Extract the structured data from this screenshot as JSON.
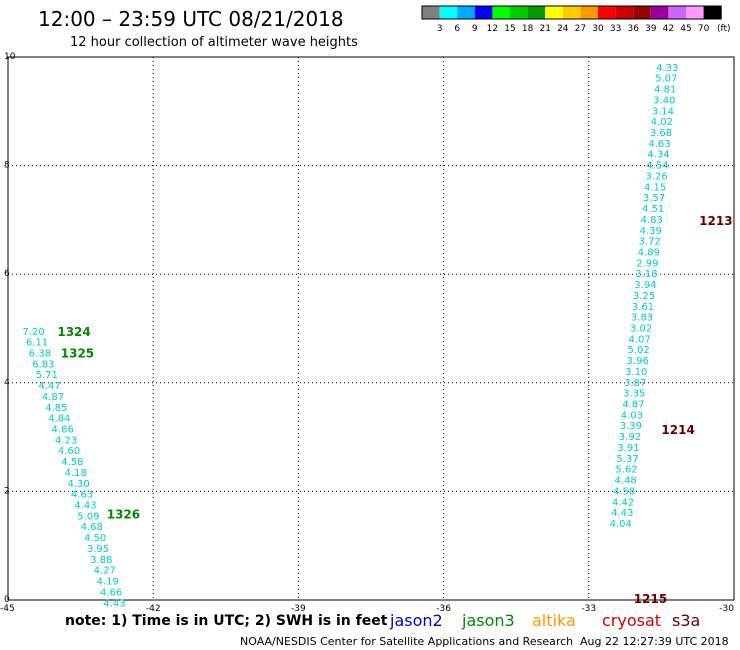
{
  "header": {
    "title": "12:00 – 23:59 UTC 08/21/2018",
    "subtitle": "12 hour collection of altimeter wave heights"
  },
  "colorbar": {
    "unit": "(ft)",
    "ticks": [
      "3",
      "6",
      "9",
      "12",
      "15",
      "18",
      "21",
      "24",
      "27",
      "30",
      "33",
      "36",
      "39",
      "42",
      "45",
      "70"
    ],
    "colors": [
      "#808080",
      "#00ffff",
      "#00aaff",
      "#0000ff",
      "#00ff00",
      "#00cc00",
      "#009900",
      "#ffff00",
      "#ffcc00",
      "#ff9900",
      "#ff0000",
      "#cc0000",
      "#990000",
      "#990099",
      "#cc66ff",
      "#ff99ff",
      "#000000"
    ]
  },
  "footer": {
    "note": "note: 1) Time is in UTC; 2) SWH is in feet",
    "legend": [
      {
        "label": "jason2",
        "color": "#0000cc"
      },
      {
        "label": "jason3",
        "color": "#008800"
      },
      {
        "label": "altika",
        "color": "#ff9900"
      },
      {
        "label": "cryosat",
        "color": "#cc0000"
      },
      {
        "label": "s3a",
        "color": "#660000"
      }
    ],
    "credit": "NOAA/NESDIS Center for Satellite Applications and Research",
    "timestamp": "Aug 22 12:27:39 UTC 2018"
  },
  "chart_data": {
    "type": "scatter",
    "xlim": [
      -45,
      -30
    ],
    "ylim": [
      0,
      10
    ],
    "x_ticks": [
      "-45",
      "-42",
      "-39",
      "-36",
      "-33",
      "-30"
    ],
    "y_ticks": [
      "0",
      "2",
      "4",
      "6",
      "8",
      "10"
    ],
    "grid": true,
    "value_color": "#00cccc",
    "tracks": [
      {
        "points": [
          {
            "x": -44.47,
            "y": 4.94,
            "v": "7.20"
          },
          {
            "x": -44.4,
            "y": 4.74,
            "v": "6.11"
          },
          {
            "x": -44.34,
            "y": 4.54,
            "v": "6.38"
          },
          {
            "x": -44.27,
            "y": 4.34,
            "v": "6.83"
          },
          {
            "x": -44.2,
            "y": 4.14,
            "v": "5.71"
          },
          {
            "x": -44.14,
            "y": 3.94,
            "v": "4.47"
          },
          {
            "x": -44.07,
            "y": 3.74,
            "v": "4.87"
          },
          {
            "x": -44.0,
            "y": 3.54,
            "v": "4.85"
          },
          {
            "x": -43.94,
            "y": 3.34,
            "v": "4.84"
          },
          {
            "x": -43.87,
            "y": 3.14,
            "v": "4.86"
          },
          {
            "x": -43.8,
            "y": 2.94,
            "v": "4.23"
          },
          {
            "x": -43.74,
            "y": 2.74,
            "v": "4.60"
          },
          {
            "x": -43.67,
            "y": 2.54,
            "v": "4.58"
          },
          {
            "x": -43.6,
            "y": 2.34,
            "v": "4.18"
          },
          {
            "x": -43.54,
            "y": 2.14,
            "v": "4.30"
          },
          {
            "x": -43.47,
            "y": 1.94,
            "v": "4.63"
          },
          {
            "x": -43.4,
            "y": 1.74,
            "v": "4.43"
          },
          {
            "x": -43.34,
            "y": 1.54,
            "v": "5.09"
          },
          {
            "x": -43.27,
            "y": 1.34,
            "v": "4.68"
          },
          {
            "x": -43.2,
            "y": 1.14,
            "v": "4.50"
          },
          {
            "x": -43.14,
            "y": 0.94,
            "v": "3.95"
          },
          {
            "x": -43.07,
            "y": 0.74,
            "v": "3.88"
          },
          {
            "x": -43.0,
            "y": 0.54,
            "v": "4.27"
          },
          {
            "x": -42.94,
            "y": 0.34,
            "v": "4.19"
          },
          {
            "x": -42.87,
            "y": 0.14,
            "v": "4.66"
          },
          {
            "x": -42.8,
            "y": -0.06,
            "v": "4.43"
          }
        ],
        "labels": [
          {
            "x": -43.98,
            "y": 4.94,
            "text": "1324",
            "color": "#008800"
          },
          {
            "x": -43.91,
            "y": 4.54,
            "text": "1325",
            "color": "#008800"
          },
          {
            "x": -42.96,
            "y": 1.57,
            "text": "1326",
            "color": "#008800"
          }
        ]
      },
      {
        "points": [
          {
            "x": -31.38,
            "y": 9.8,
            "v": "4.33"
          },
          {
            "x": -31.4,
            "y": 9.6,
            "v": "5.07"
          },
          {
            "x": -31.42,
            "y": 9.4,
            "v": "4.81"
          },
          {
            "x": -31.44,
            "y": 9.2,
            "v": "3.40"
          },
          {
            "x": -31.47,
            "y": 9.0,
            "v": "3.14"
          },
          {
            "x": -31.49,
            "y": 8.8,
            "v": "4.02"
          },
          {
            "x": -31.51,
            "y": 8.6,
            "v": "3.68"
          },
          {
            "x": -31.54,
            "y": 8.4,
            "v": "4.63"
          },
          {
            "x": -31.56,
            "y": 8.2,
            "v": "4.34"
          },
          {
            "x": -31.58,
            "y": 8.0,
            "v": "4.54"
          },
          {
            "x": -31.6,
            "y": 7.8,
            "v": "3.26"
          },
          {
            "x": -31.63,
            "y": 7.6,
            "v": "4.15"
          },
          {
            "x": -31.65,
            "y": 7.4,
            "v": "3.57"
          },
          {
            "x": -31.67,
            "y": 7.2,
            "v": "4.51"
          },
          {
            "x": -31.7,
            "y": 7.0,
            "v": "4.83"
          },
          {
            "x": -31.72,
            "y": 6.8,
            "v": "4.39"
          },
          {
            "x": -31.74,
            "y": 6.6,
            "v": "3.72"
          },
          {
            "x": -31.76,
            "y": 6.4,
            "v": "4.89"
          },
          {
            "x": -31.79,
            "y": 6.2,
            "v": "2.99"
          },
          {
            "x": -31.81,
            "y": 6.0,
            "v": "3.18"
          },
          {
            "x": -31.83,
            "y": 5.8,
            "v": "3.94"
          },
          {
            "x": -31.86,
            "y": 5.6,
            "v": "3.25"
          },
          {
            "x": -31.88,
            "y": 5.4,
            "v": "3.61"
          },
          {
            "x": -31.9,
            "y": 5.2,
            "v": "3.83"
          },
          {
            "x": -31.92,
            "y": 5.0,
            "v": "3.02"
          },
          {
            "x": -31.95,
            "y": 4.8,
            "v": "4.07"
          },
          {
            "x": -31.97,
            "y": 4.6,
            "v": "5.02"
          },
          {
            "x": -31.99,
            "y": 4.4,
            "v": "3.96"
          },
          {
            "x": -32.02,
            "y": 4.2,
            "v": "3.10"
          },
          {
            "x": -32.04,
            "y": 4.0,
            "v": "3.87"
          },
          {
            "x": -32.06,
            "y": 3.8,
            "v": "3.35"
          },
          {
            "x": -32.08,
            "y": 3.6,
            "v": "4.87"
          },
          {
            "x": -32.11,
            "y": 3.4,
            "v": "4.03"
          },
          {
            "x": -32.13,
            "y": 3.2,
            "v": "3.39"
          },
          {
            "x": -32.15,
            "y": 3.0,
            "v": "3.92"
          },
          {
            "x": -32.18,
            "y": 2.8,
            "v": "3.91"
          },
          {
            "x": -32.2,
            "y": 2.6,
            "v": "5.37"
          },
          {
            "x": -32.22,
            "y": 2.4,
            "v": "5.62"
          },
          {
            "x": -32.24,
            "y": 2.2,
            "v": "4.48"
          },
          {
            "x": -32.27,
            "y": 2.0,
            "v": "4.58"
          },
          {
            "x": -32.29,
            "y": 1.8,
            "v": "4.42"
          },
          {
            "x": -32.31,
            "y": 1.6,
            "v": "4.43"
          },
          {
            "x": -32.34,
            "y": 1.4,
            "v": "4.04"
          }
        ],
        "labels": [
          {
            "x": -30.72,
            "y": 6.98,
            "text": "1213",
            "color": "#660000"
          },
          {
            "x": -31.5,
            "y": 3.13,
            "text": "1214",
            "color": "#660000"
          },
          {
            "x": -32.07,
            "y": 0.02,
            "text": "1215",
            "color": "#660000"
          }
        ]
      }
    ]
  }
}
